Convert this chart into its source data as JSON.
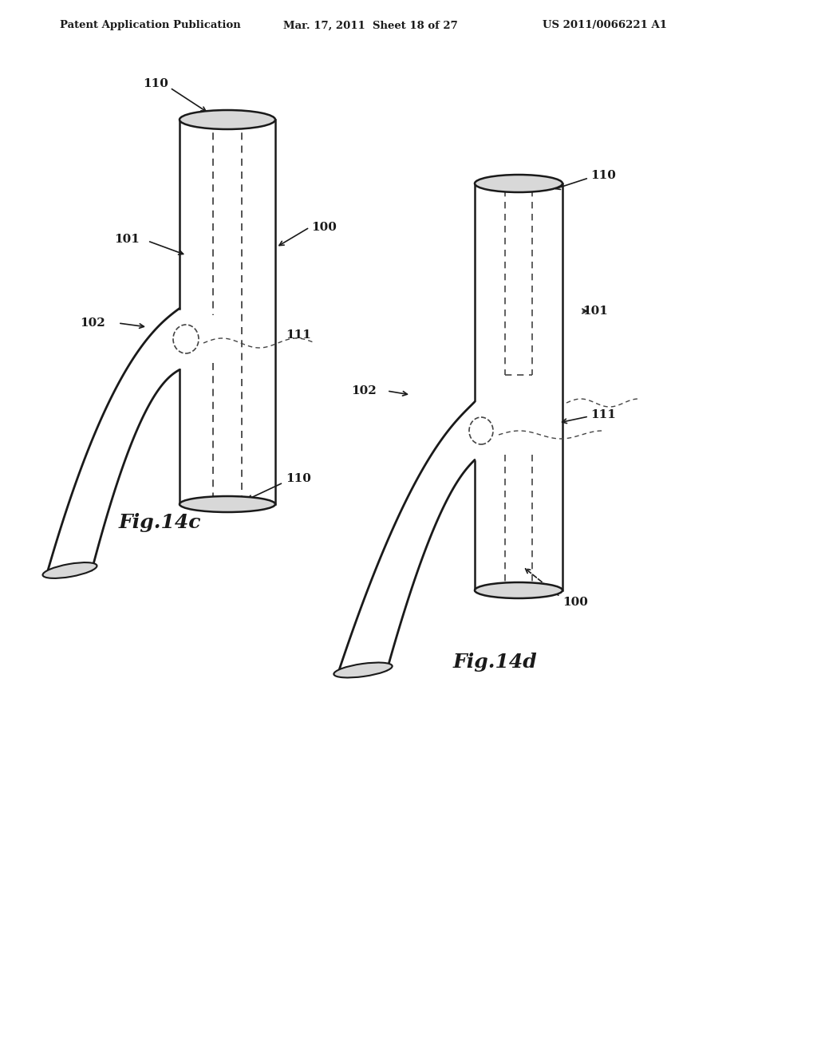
{
  "background_color": "#ffffff",
  "header_left": "Patent Application Publication",
  "header_center": "Mar. 17, 2011  Sheet 18 of 27",
  "header_right": "US 2011/0066221 A1",
  "fig_c_label": "Fig.14c",
  "fig_d_label": "Fig.14d",
  "line_color": "#1a1a1a",
  "dashed_color": "#444444",
  "gray_fill": "#b8b8b8",
  "light_gray": "#d8d8d8"
}
